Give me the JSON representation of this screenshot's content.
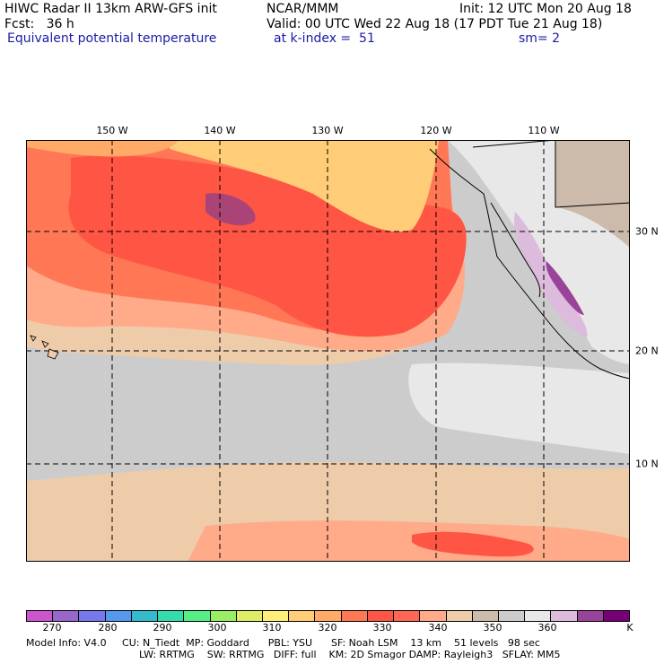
{
  "header": {
    "line1_left": "HIWC Radar II 13km ARW-GFS init",
    "line1_mid": "NCAR/MMM",
    "line1_right": "Init: 12 UTC Mon 20 Aug 18",
    "line2_left": "Fcst:   36 h",
    "line2_right": "Valid: 00 UTC Wed 22 Aug 18 (17 PDT Tue 21 Aug 18)",
    "line3_left": "Equivalent potential temperature",
    "line3_mid": "at k-index =  51",
    "line3_right": "sm= 2"
  },
  "axes": {
    "lon_labels": [
      "150 W",
      "140 W",
      "130 W",
      "120 W",
      "110 W"
    ],
    "lat_labels": [
      "30 N",
      "20 N",
      "10 N"
    ]
  },
  "colorbar": {
    "colors": [
      "#cc55cc",
      "#9966cc",
      "#7777ee",
      "#5599ee",
      "#33bbcc",
      "#33ddaa",
      "#55ee88",
      "#99ee66",
      "#ddee66",
      "#ffee77",
      "#ffcc77",
      "#ffaa66",
      "#ff7755",
      "#ff5544",
      "#ff6655",
      "#ffaa88",
      "#eeccaa",
      "#ccbbaa",
      "#cccccc",
      "#e8e8e8",
      "#ddbbdd",
      "#994499",
      "#770077"
    ],
    "tick_labels": [
      "270",
      "280",
      "290",
      "300",
      "310",
      "320",
      "330",
      "340",
      "350",
      "360"
    ],
    "unit": "K"
  },
  "footer": {
    "line1": "Model Info: V4.0     CU: N_Tiedt  MP: Goddard      PBL: YSU      SF: Noah LSM    13 km    51 levels   98 sec",
    "line2": "LW: RRTMG    SW: RRTMG   DIFF: full    KM: 2D Smagor DAMP: Rayleigh3   SFLAY: MM5"
  }
}
